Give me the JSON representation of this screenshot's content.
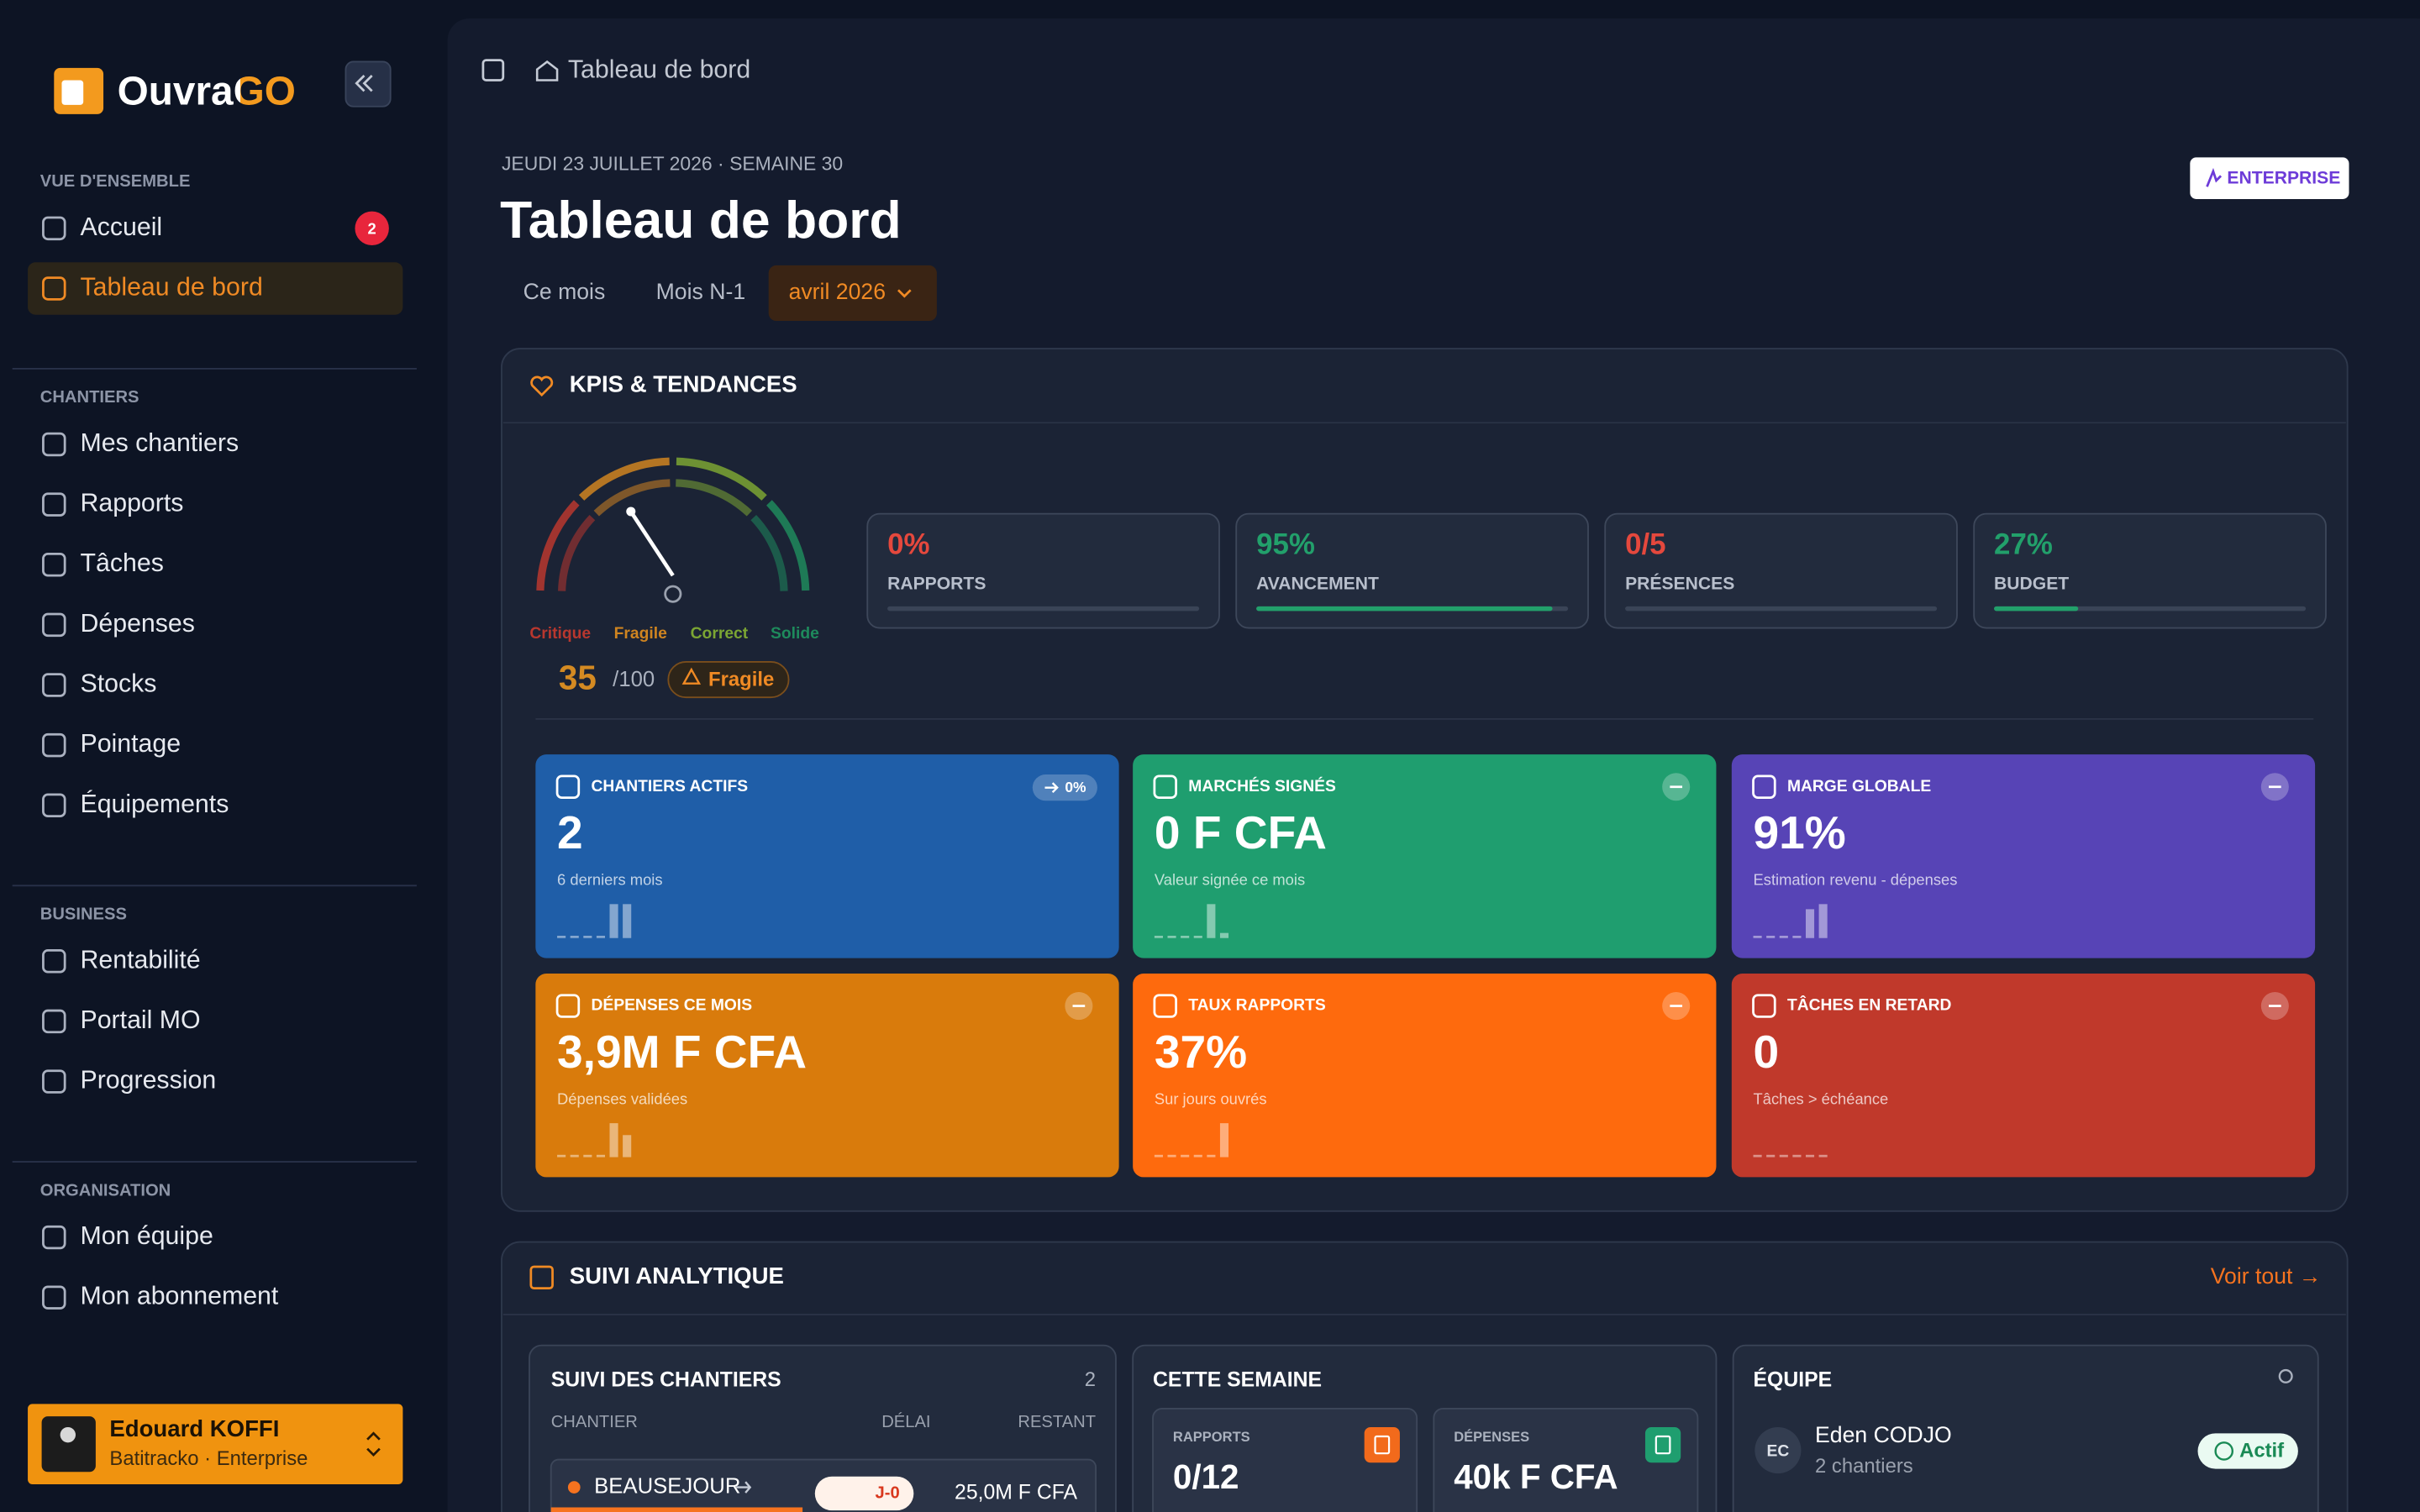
{
  "sidebar": {
    "brand": "OuvraGO",
    "sections": [
      {
        "title": "VUE D'ENSEMBLE",
        "items": [
          {
            "label": "Accueil",
            "badge": "2"
          },
          {
            "label": "Tableau de bord",
            "active": true
          }
        ]
      },
      {
        "title": "CHANTIERS",
        "items": [
          {
            "label": "Mes chantiers"
          },
          {
            "label": "Rapports"
          },
          {
            "label": "Tâches"
          },
          {
            "label": "Dépenses"
          },
          {
            "label": "Stocks"
          },
          {
            "label": "Pointage"
          },
          {
            "label": "Équipements"
          }
        ]
      },
      {
        "title": "BUSINESS",
        "items": [
          {
            "label": "Rentabilité"
          },
          {
            "label": "Portail MO"
          },
          {
            "label": "Progression"
          }
        ]
      },
      {
        "title": "ORGANISATION",
        "items": [
          {
            "label": "Mon équipe"
          },
          {
            "label": "Mon abonnement"
          }
        ]
      }
    ],
    "user": {
      "name": "Edouard KOFFI",
      "org": "Batitracko · Enterprise"
    }
  },
  "header": {
    "breadcrumb": "Tableau de bord"
  },
  "page": {
    "date": "JEUDI 23 JUILLET 2026 · SEMAINE 30",
    "title": "Tableau de bord",
    "plan": "ENTERPRISE",
    "periods": [
      {
        "label": "Ce mois"
      },
      {
        "label": "Mois N-1"
      },
      {
        "label": "avril 2026",
        "active": true
      }
    ]
  },
  "kpis": {
    "title": "KPIS & TENDANCES",
    "gauge": {
      "score": 35,
      "max": {
        "value": 100,
        "label": "/100"
      },
      "status": "Fragile",
      "zones": [
        {
          "label": "Critique",
          "color": "#b8372e"
        },
        {
          "label": "Fragile",
          "color": "#cf8420"
        },
        {
          "label": "Correct",
          "color": "#7ba533"
        },
        {
          "label": "Solide",
          "color": "#1e8a5c"
        }
      ]
    },
    "metrics": [
      {
        "value": "0%",
        "label": "RAPPORTS",
        "progress": 0,
        "color": "#e5483d"
      },
      {
        "value": "95%",
        "label": "AVANCEMENT",
        "progress": 95,
        "color": "#22a06b"
      },
      {
        "value": "0/5",
        "label": "PRÉSENCES",
        "progress": 0,
        "color": "#e5483d"
      },
      {
        "value": "27%",
        "label": "BUDGET",
        "progress": 27,
        "color": "#22a06b"
      }
    ],
    "cards": [
      {
        "title": "CHANTIERS ACTIFS",
        "value": "2",
        "subtitle": "6 derniers mois",
        "trend": "0%",
        "color": "#1f5ea8",
        "spark": [
          0,
          0,
          0,
          0,
          1,
          1
        ]
      },
      {
        "title": "MARCHÉS SIGNÉS",
        "value": "0 F CFA",
        "subtitle": "Valeur signée ce mois",
        "color": "#1f9e6f",
        "spark": [
          0,
          0,
          0,
          0,
          1,
          0.15
        ]
      },
      {
        "title": "MARGE GLOBALE",
        "value": "91%",
        "subtitle": "Estimation revenu - dépenses",
        "color": "#5744b6",
        "spark": [
          0,
          0,
          0,
          0,
          0.85,
          1
        ]
      },
      {
        "title": "DÉPENSES CE MOIS",
        "value": "3,9M F CFA",
        "subtitle": "Dépenses validées",
        "color": "#d97b0c",
        "spark": [
          0,
          0,
          0,
          0,
          1,
          0.65
        ]
      },
      {
        "title": "TAUX RAPPORTS",
        "value": "37%",
        "subtitle": "Sur jours ouvrés",
        "color": "#fe6a0d",
        "spark": [
          0,
          0,
          0,
          0,
          0,
          1
        ]
      },
      {
        "title": "TÂCHES EN RETARD",
        "value": "0",
        "subtitle": "Tâches > échéance",
        "color": "#c0392b",
        "spark": [
          0,
          0,
          0,
          0,
          0,
          0
        ]
      }
    ]
  },
  "analytics": {
    "title": "SUIVI ANALYTIQUE",
    "link": "Voir tout →",
    "sites": {
      "title": "SUIVI DES CHANTIERS",
      "count": "2",
      "columns": [
        "CHANTIER",
        "DÉLAI",
        "RESTANT"
      ],
      "rows": [
        {
          "name": "BEAUSEJOUR",
          "delay": "J-0",
          "remaining": "25,0M F CFA"
        }
      ]
    },
    "week": {
      "title": "CETTE SEMAINE",
      "stats": [
        {
          "label": "RAPPORTS",
          "value": "0/12",
          "color": "#f26a1b"
        },
        {
          "label": "DÉPENSES",
          "value": "40k F CFA",
          "color": "#1f9e6f"
        }
      ]
    },
    "team": {
      "title": "ÉQUIPE",
      "members": [
        {
          "initials": "EC",
          "name": "Eden CODJO",
          "detail": "2 chantiers",
          "status": "Actif"
        }
      ]
    }
  }
}
